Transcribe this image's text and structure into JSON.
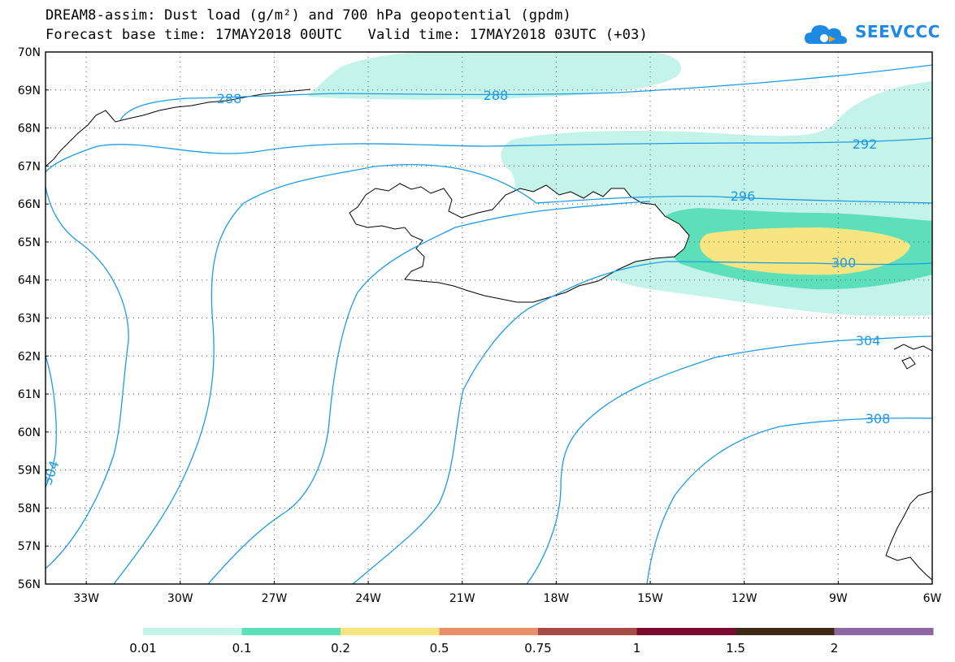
{
  "title": {
    "line1": "DREAM8-assim: Dust load (g/m²) and 700 hPa geopotential (gpdm)",
    "line2": "Forecast base time: 17MAY2018 00UTC   Valid time: 17MAY2018 03UTC (+03)"
  },
  "logo": {
    "text": "SEEVCCC",
    "icon": "cloud-icon",
    "color": "#1e88e5"
  },
  "map": {
    "lon_range": [
      -34.3,
      -6
    ],
    "lat_range": [
      56,
      70
    ],
    "lat_labels": [
      "70N",
      "69N",
      "68N",
      "67N",
      "66N",
      "65N",
      "64N",
      "63N",
      "62N",
      "61N",
      "60N",
      "59N",
      "58N",
      "57N",
      "56N"
    ],
    "lon_labels": [
      "33W",
      "30W",
      "27W",
      "24W",
      "21W",
      "18W",
      "15W",
      "12W",
      "9W",
      "6W"
    ],
    "contour_labels": [
      {
        "text": "288"
      },
      {
        "text": "288"
      },
      {
        "text": "292"
      },
      {
        "text": "296"
      },
      {
        "text": "300"
      },
      {
        "text": "304"
      },
      {
        "text": "308"
      },
      {
        "text": "304"
      }
    ],
    "contour_color": "#1e9be6",
    "dust_colors": {
      "c1": "#c4f3ea",
      "c2": "#5de0ba",
      "c3": "#f6e580"
    }
  },
  "colorbar": {
    "labels": [
      "0.01",
      "0.1",
      "0.2",
      "0.5",
      "0.75",
      "1",
      "1.5",
      "2"
    ],
    "colors": [
      "#c4f3ea",
      "#5de0ba",
      "#f6e580",
      "#e98f6a",
      "#a74b45",
      "#7b0a2e",
      "#3f2816",
      "#8e66a1"
    ]
  }
}
